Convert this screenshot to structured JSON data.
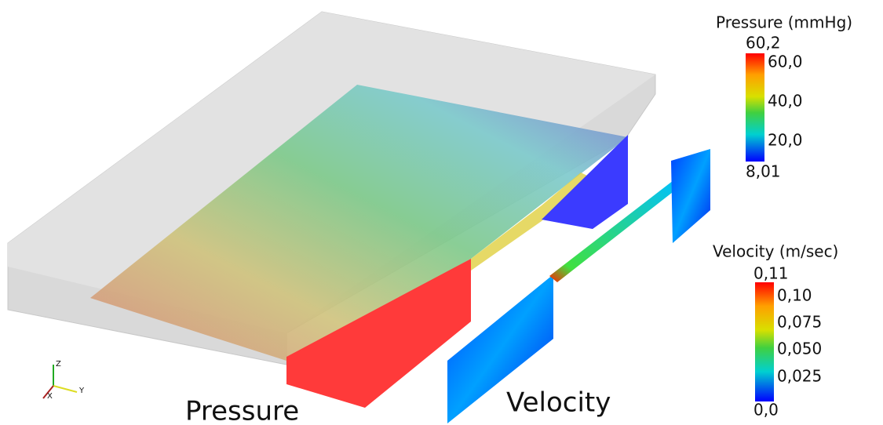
{
  "pressure_legend": {
    "title": "Pressure (mmHg)",
    "max_label": "60,2",
    "ticks": [
      "60,0",
      "40,0",
      "20,0"
    ],
    "min_label": "8,01"
  },
  "velocity_legend": {
    "title": "Velocity (m/sec)",
    "max_label": "0,11",
    "ticks": [
      "0,10",
      "0,075",
      "0,050",
      "0,025"
    ],
    "min_label": "0,0"
  },
  "labels": {
    "pressure": "Pressure",
    "velocity": "Velocity"
  },
  "axes": {
    "z": "Z",
    "x": "X",
    "y": "Y"
  }
}
